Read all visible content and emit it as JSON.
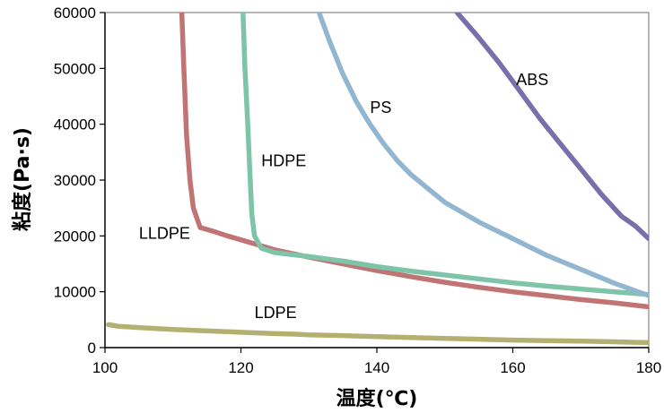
{
  "chart_data": {
    "type": "line",
    "title": "",
    "xlabel": "温度(℃)",
    "ylabel": "粘度(Pa·s)",
    "xlim": [
      100,
      180
    ],
    "ylim": [
      0,
      60000
    ],
    "xticks": [
      100,
      120,
      140,
      160,
      180
    ],
    "yticks": [
      0,
      10000,
      20000,
      30000,
      40000,
      50000,
      60000
    ],
    "grid": false,
    "legend": "none (direct labels)",
    "series": [
      {
        "name": "LDPE",
        "color": "#b3b072",
        "label_at": [
          122,
          5300
        ],
        "x": [
          100.5,
          102,
          105,
          107,
          110,
          112,
          114,
          116,
          118,
          120,
          122,
          125,
          128,
          130,
          135,
          140,
          145,
          150,
          155,
          160,
          165,
          170,
          175,
          178,
          180
        ],
        "y": [
          4100,
          3800,
          3600,
          3450,
          3250,
          3150,
          3050,
          2950,
          2850,
          2750,
          2650,
          2500,
          2400,
          2300,
          2150,
          1950,
          1800,
          1650,
          1500,
          1350,
          1250,
          1150,
          1050,
          950,
          900
        ]
      },
      {
        "name": "LLDPE",
        "color": "#c07474",
        "label_at": [
          105,
          19500
        ],
        "x": [
          111.3,
          111.6,
          112,
          112.5,
          113,
          114,
          116,
          118,
          120,
          122,
          125,
          130,
          135,
          140,
          145,
          150,
          155,
          160,
          165,
          170,
          175,
          180
        ],
        "y": [
          60000,
          50000,
          38000,
          30000,
          25000,
          21500,
          20800,
          20000,
          19300,
          18600,
          17500,
          16200,
          15000,
          13800,
          12700,
          11700,
          10800,
          10000,
          9300,
          8600,
          8000,
          7300
        ]
      },
      {
        "name": "HDPE",
        "color": "#7ec4a8",
        "label_at": [
          123,
          32500
        ],
        "x": [
          120.3,
          120.6,
          121,
          121.3,
          121.6,
          122,
          123,
          125,
          130,
          135,
          140,
          145,
          150,
          155,
          160,
          165,
          170,
          175,
          180
        ],
        "y": [
          60000,
          50000,
          40000,
          32000,
          24000,
          20000,
          17800,
          17000,
          16300,
          15500,
          14500,
          13700,
          13000,
          12300,
          11600,
          11000,
          10500,
          10000,
          9500
        ]
      },
      {
        "name": "PS",
        "color": "#93b6d0",
        "label_at": [
          139,
          42000
        ],
        "x": [
          131.5,
          133,
          135,
          137,
          139,
          141,
          143,
          145,
          148,
          150,
          155,
          160,
          165,
          170,
          175,
          180
        ],
        "y": [
          60000,
          55000,
          49000,
          44000,
          40000,
          36500,
          33500,
          31000,
          28000,
          26000,
          22500,
          19500,
          16500,
          14000,
          11500,
          9300
        ]
      },
      {
        "name": "ABS",
        "color": "#7a6eac",
        "label_at": [
          160.5,
          47000
        ],
        "x": [
          151.8,
          155,
          158,
          161,
          164,
          167,
          170,
          173,
          176,
          178,
          180
        ],
        "y": [
          60000,
          55500,
          51000,
          46000,
          41000,
          36500,
          32000,
          27500,
          23500,
          21800,
          19500
        ]
      }
    ]
  }
}
